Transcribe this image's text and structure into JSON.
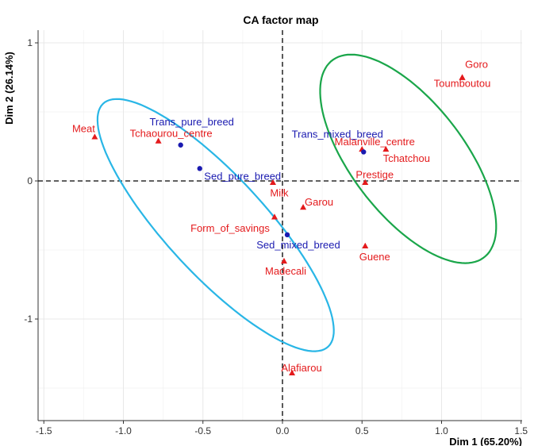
{
  "chart_data": {
    "type": "scatter",
    "title": "CA factor map",
    "xlabel": "Dim 1 (65.20%)",
    "ylabel": "Dim 2 (26.14%)",
    "xlim": [
      -1.5,
      1.5
    ],
    "ylim": [
      -1.5,
      1.0
    ],
    "x_ticks": [
      {
        "value": -1.5,
        "label": "-1.5"
      },
      {
        "value": -1.0,
        "label": "-1.0"
      },
      {
        "value": -0.5,
        "label": "-0.5"
      },
      {
        "value": 0.0,
        "label": "0.0"
      },
      {
        "value": 0.5,
        "label": "0.5"
      },
      {
        "value": 1.0,
        "label": "1.0"
      },
      {
        "value": 1.5,
        "label": "1.5"
      }
    ],
    "y_ticks": [
      {
        "value": 1,
        "label": "1"
      },
      {
        "value": 0,
        "label": "0"
      },
      {
        "value": -1,
        "label": "-1"
      }
    ],
    "grid": true,
    "zero_lines": true,
    "colors": {
      "rows": "#e41a1c",
      "cols": "#1a1ab0",
      "ellipse_left": "#29b6e6",
      "ellipse_right": "#1aa64a",
      "grid_major": "#e8e8e8",
      "grid_minor": "#f3f3f3",
      "axis": "#333333"
    },
    "series": [
      {
        "marker": "triangle",
        "color": "#e41a1c",
        "points": [
          {
            "label": "Goro",
            "x": 1.13,
            "y": 0.75
          },
          {
            "label": "Toumboutou",
            "x": 1.13,
            "y": 0.75
          },
          {
            "label": "Meat",
            "x": -1.18,
            "y": 0.32
          },
          {
            "label": "Tchaourou_centre",
            "x": -0.78,
            "y": 0.29
          },
          {
            "label": "Malanville_centre",
            "x": 0.5,
            "y": 0.23
          },
          {
            "label": "Tchatchou",
            "x": 0.65,
            "y": 0.23
          },
          {
            "label": "Prestige",
            "x": 0.52,
            "y": -0.01
          },
          {
            "label": "Milk",
            "x": -0.06,
            "y": -0.01
          },
          {
            "label": "Garou",
            "x": 0.13,
            "y": -0.19
          },
          {
            "label": "Form_of_savings",
            "x": -0.05,
            "y": -0.26
          },
          {
            "label": "Guene",
            "x": 0.52,
            "y": -0.47
          },
          {
            "label": "Madecali",
            "x": 0.01,
            "y": -0.58
          },
          {
            "label": "Alafiarou",
            "x": 0.06,
            "y": -1.39
          }
        ]
      },
      {
        "marker": "circle",
        "color": "#1a1ab0",
        "points": [
          {
            "label": "Trans_pure_breed",
            "x": -0.64,
            "y": 0.26
          },
          {
            "label": "Sed_pure_breed",
            "x": -0.52,
            "y": 0.09
          },
          {
            "label": "Trans_mixed_breed",
            "x": 0.51,
            "y": 0.21
          },
          {
            "label": "Sed_mixed_breed",
            "x": 0.03,
            "y": -0.39
          }
        ]
      }
    ],
    "ellipses": [
      {
        "color": "#29b6e6",
        "cx": -0.42,
        "cy": -0.32,
        "rx": 1.13,
        "ry": 0.33,
        "angle_deg": -52
      },
      {
        "color": "#1aa64a",
        "cx": 0.79,
        "cy": 0.16,
        "rx": 0.86,
        "ry": 0.37,
        "angle_deg": -58
      }
    ]
  }
}
